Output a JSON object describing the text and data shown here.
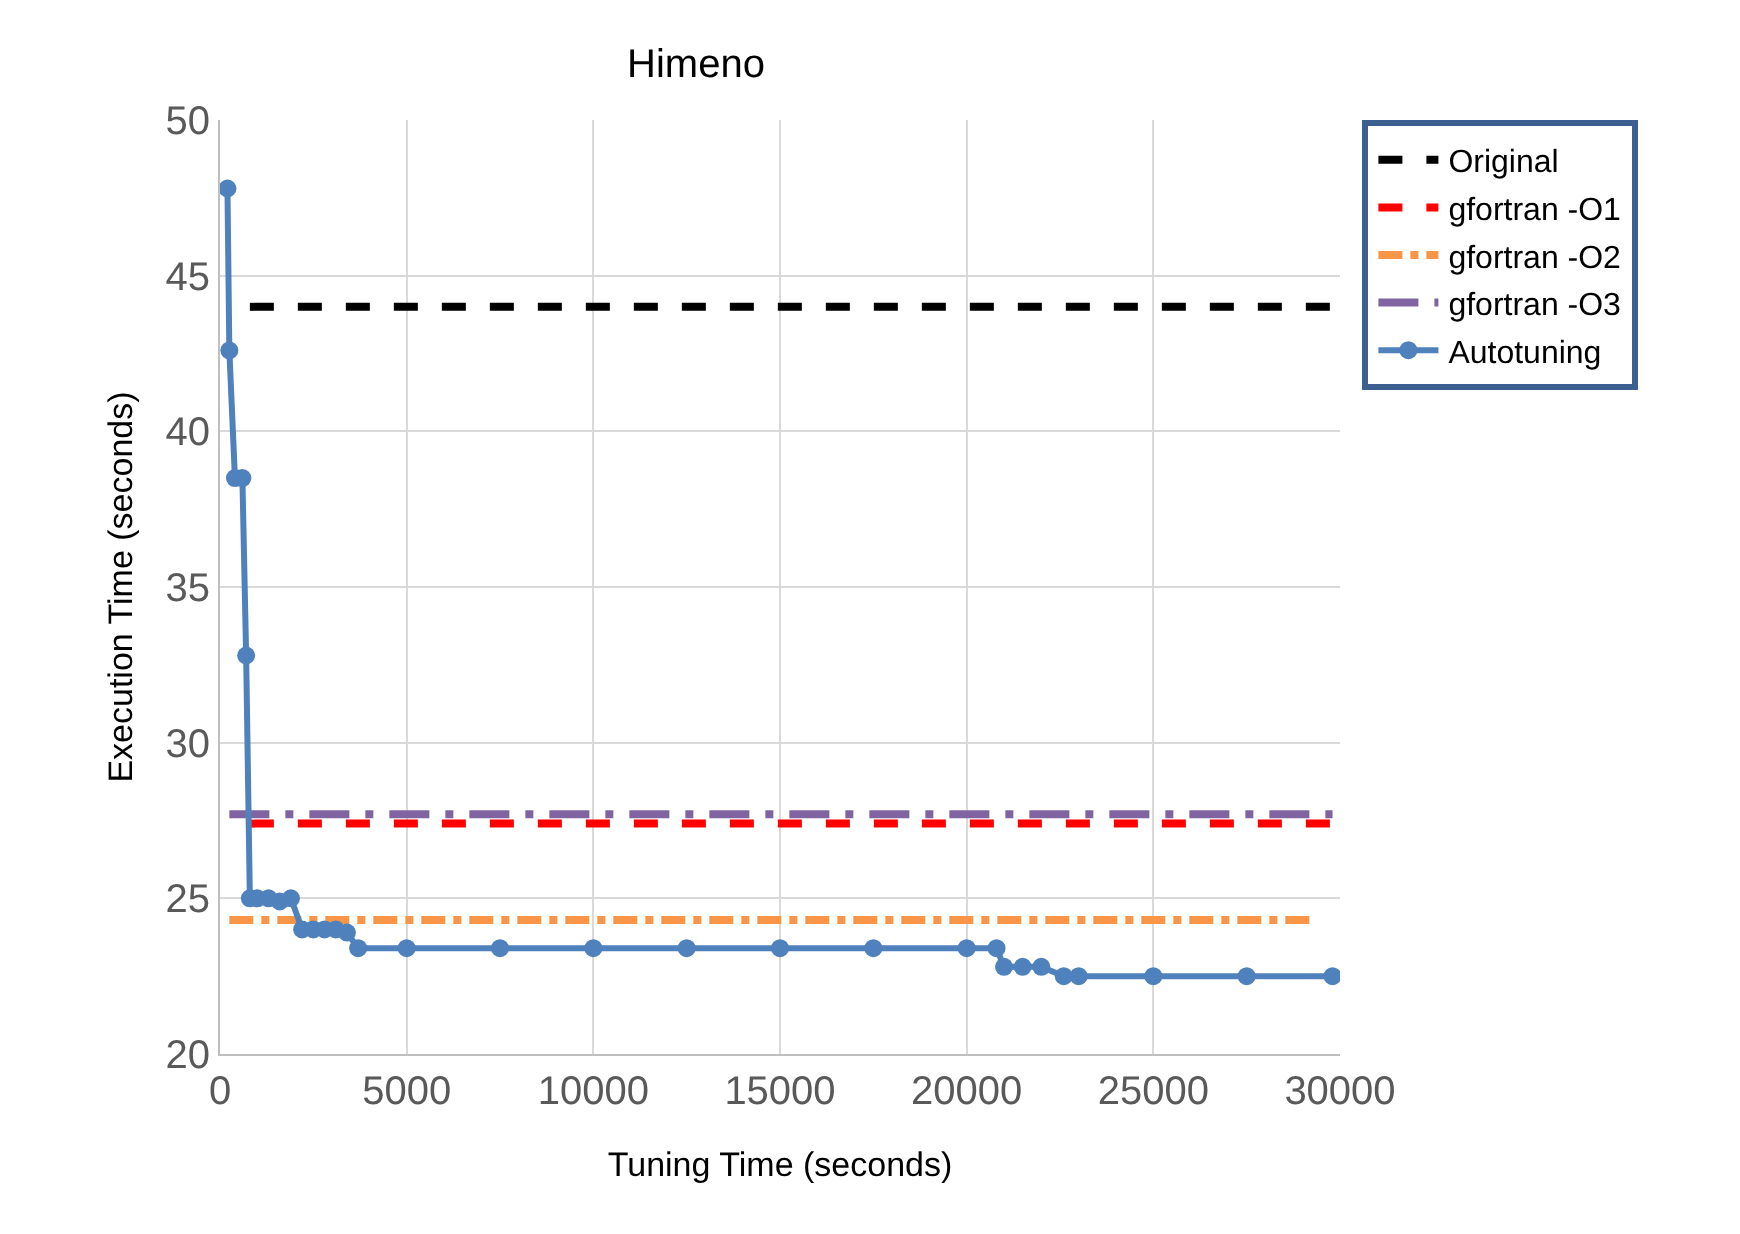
{
  "chart_data": {
    "type": "line",
    "title": "Himeno",
    "xlabel": "Tuning Time (seconds)",
    "ylabel": "Execution Time (seconds)",
    "xlim": [
      0,
      30000
    ],
    "xticks": [
      0,
      5000,
      10000,
      15000,
      20000,
      25000,
      30000
    ],
    "ylim": [
      20,
      50
    ],
    "yticks": [
      20,
      25,
      30,
      35,
      40,
      45,
      50
    ],
    "grid": true,
    "legend": "right",
    "series": [
      {
        "name": "Original",
        "color": "#000000",
        "line_style": "dashed",
        "marker": "none",
        "x": [
          800,
          29800
        ],
        "values": [
          44,
          44
        ]
      },
      {
        "name": "gfortran -O1",
        "color": "#ff0000",
        "line_style": "dashed",
        "marker": "none",
        "x": [
          800,
          29800
        ],
        "values": [
          27.4,
          27.4
        ]
      },
      {
        "name": "gfortran -O2",
        "color": "#f79646",
        "line_style": "dashdot",
        "marker": "none",
        "x": [
          250,
          29200
        ],
        "values": [
          24.3,
          24.3
        ]
      },
      {
        "name": "gfortran -O3",
        "color": "#8064a2",
        "line_style": "longdashdot",
        "marker": "none",
        "x": [
          250,
          29800
        ],
        "values": [
          27.7,
          27.7
        ]
      },
      {
        "name": "Autotuning",
        "color": "#4f81bd",
        "line_style": "solid",
        "marker": "circle",
        "x": [
          200,
          250,
          400,
          600,
          700,
          800,
          1000,
          1300,
          1600,
          1900,
          2200,
          2500,
          2800,
          3100,
          3400,
          3700,
          5000,
          7500,
          10000,
          12500,
          15000,
          17500,
          20000,
          20800,
          21000,
          21500,
          22000,
          22600,
          23000,
          25000,
          27500,
          29800
        ],
        "values": [
          47.8,
          42.6,
          38.5,
          38.5,
          32.8,
          25,
          25,
          25,
          24.9,
          25,
          24,
          24,
          24,
          24,
          23.9,
          23.4,
          23.4,
          23.4,
          23.4,
          23.4,
          23.4,
          23.4,
          23.4,
          23.4,
          22.8,
          22.8,
          22.8,
          22.5,
          22.5,
          22.5,
          22.5,
          22.5
        ]
      }
    ]
  }
}
